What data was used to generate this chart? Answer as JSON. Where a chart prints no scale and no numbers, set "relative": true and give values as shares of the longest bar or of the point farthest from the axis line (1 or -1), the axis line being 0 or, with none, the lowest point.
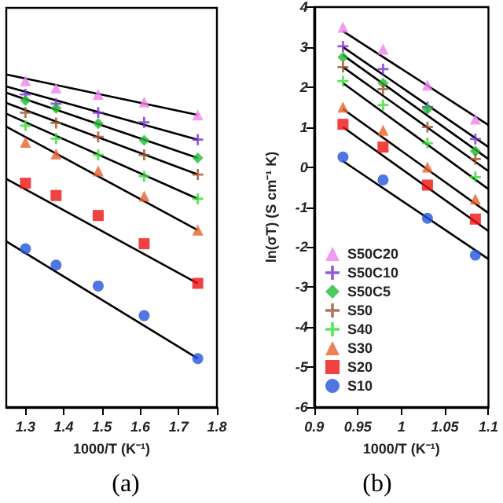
{
  "chart_data": [
    {
      "type": "scatter",
      "relative": true,
      "xlabel": "1000/T (K⁻¹)",
      "xlim": [
        1.25,
        1.8
      ],
      "xticks": [
        1.3,
        1.4,
        1.5,
        1.6,
        1.7,
        1.8
      ],
      "legend": false,
      "grid": false,
      "annotations": [
        "(a)"
      ],
      "x": [
        1.3,
        1.38,
        1.49,
        1.61,
        1.75
      ],
      "series": [
        {
          "color": "#ee82ee",
          "marker": "triangle",
          "values": [
            0.981,
            0.959,
            0.94,
            0.917,
            0.878
          ]
        },
        {
          "color": "#7b2fd6",
          "marker": "cross",
          "values": [
            0.94,
            0.912,
            0.885,
            0.856,
            0.804
          ]
        },
        {
          "color": "#22bb33",
          "marker": "diamond",
          "values": [
            0.922,
            0.898,
            0.852,
            0.802,
            0.749
          ]
        },
        {
          "color": "#a0522d",
          "marker": "cross",
          "values": [
            0.885,
            0.854,
            0.812,
            0.758,
            0.699
          ]
        },
        {
          "color": "#33dd33",
          "marker": "cross",
          "values": [
            0.846,
            0.807,
            0.758,
            0.694,
            0.626
          ]
        },
        {
          "color": "#e8622a",
          "marker": "triangle",
          "values": [
            0.796,
            0.761,
            0.71,
            0.634,
            0.532
          ]
        },
        {
          "color": "#ee1111",
          "marker": "square",
          "values": [
            0.673,
            0.636,
            0.576,
            0.491,
            0.372
          ]
        },
        {
          "color": "#2255dd",
          "marker": "circle",
          "values": [
            0.476,
            0.427,
            0.364,
            0.275,
            0.146
          ]
        },
        {
          "type": "line",
          "color": "#000000",
          "marker": "none",
          "x": [
            1.25,
            1.75
          ],
          "values": [
            1.0,
            0.878
          ]
        },
        {
          "type": "line",
          "color": "#000000",
          "marker": "none",
          "x": [
            1.25,
            1.75
          ],
          "values": [
            0.964,
            0.804
          ]
        },
        {
          "type": "line",
          "color": "#000000",
          "marker": "none",
          "x": [
            1.25,
            1.75
          ],
          "values": [
            0.945,
            0.749
          ]
        },
        {
          "type": "line",
          "color": "#000000",
          "marker": "none",
          "x": [
            1.25,
            1.75
          ],
          "values": [
            0.914,
            0.699
          ]
        },
        {
          "type": "line",
          "color": "#000000",
          "marker": "none",
          "x": [
            1.25,
            1.75
          ],
          "values": [
            0.882,
            0.626
          ]
        },
        {
          "type": "line",
          "color": "#000000",
          "marker": "none",
          "x": [
            1.25,
            1.75
          ],
          "values": [
            0.843,
            0.532
          ]
        },
        {
          "type": "line",
          "color": "#000000",
          "marker": "none",
          "x": [
            1.25,
            1.75
          ],
          "values": [
            0.686,
            0.372
          ]
        },
        {
          "type": "line",
          "color": "#000000",
          "marker": "none",
          "x": [
            1.25,
            1.75
          ],
          "values": [
            0.498,
            0.146
          ]
        }
      ]
    },
    {
      "type": "scatter",
      "xlabel": "1000/T (K⁻¹)",
      "ylabel": "ln(σT) (S cm⁻¹ K)",
      "xlim": [
        0.9,
        1.1
      ],
      "xticks": [
        0.9,
        0.95,
        1,
        1.05,
        1.1
      ],
      "ylim": [
        -6,
        4
      ],
      "yticks": [
        -6,
        -5,
        -4,
        -3,
        -2,
        -1,
        0,
        1,
        2,
        3,
        4
      ],
      "legend": "bottom left",
      "grid": false,
      "annotations": [
        "(b)"
      ],
      "x": [
        0.933,
        0.979,
        1.03,
        1.085
      ],
      "series": [
        {
          "name": "S50C20",
          "color": "#ee82ee",
          "marker": "triangle",
          "values": [
            3.5,
            2.95,
            2.05,
            1.2
          ]
        },
        {
          "name": "S50C10",
          "color": "#7b2fd6",
          "marker": "cross",
          "values": [
            3.02,
            2.45,
            1.5,
            0.7
          ]
        },
        {
          "name": "S50C5",
          "color": "#22bb33",
          "marker": "diamond",
          "values": [
            2.75,
            2.1,
            1.45,
            0.4
          ]
        },
        {
          "name": "S50",
          "color": "#a0522d",
          "marker": "cross",
          "values": [
            2.5,
            1.95,
            1.0,
            0.2
          ]
        },
        {
          "name": "S40",
          "color": "#33dd33",
          "marker": "cross",
          "values": [
            2.15,
            1.55,
            0.6,
            -0.25
          ]
        },
        {
          "name": "S30",
          "color": "#e8622a",
          "marker": "triangle",
          "values": [
            1.5,
            0.92,
            0.0,
            -0.8
          ]
        },
        {
          "name": "S20",
          "color": "#ee1111",
          "marker": "square",
          "values": [
            1.07,
            0.5,
            -0.45,
            -1.3
          ]
        },
        {
          "name": "S10",
          "color": "#2255dd",
          "marker": "circle",
          "values": [
            0.25,
            -0.32,
            -1.28,
            -2.2
          ]
        },
        {
          "type": "line",
          "color": "#000000",
          "marker": "none",
          "x": [
            0.933,
            1.1
          ],
          "values": [
            3.4,
            1.05
          ]
        },
        {
          "type": "line",
          "color": "#000000",
          "marker": "none",
          "x": [
            0.933,
            1.1
          ],
          "values": [
            3.0,
            0.5
          ]
        },
        {
          "type": "line",
          "color": "#000000",
          "marker": "none",
          "x": [
            0.933,
            1.1
          ],
          "values": [
            2.8,
            0.2
          ]
        },
        {
          "type": "line",
          "color": "#000000",
          "marker": "none",
          "x": [
            0.933,
            1.1
          ],
          "values": [
            2.5,
            -0.1
          ]
        },
        {
          "type": "line",
          "color": "#000000",
          "marker": "none",
          "x": [
            0.933,
            1.1
          ],
          "values": [
            2.1,
            -0.55
          ]
        },
        {
          "type": "line",
          "color": "#000000",
          "marker": "none",
          "x": [
            0.933,
            1.1
          ],
          "values": [
            1.45,
            -1.15
          ]
        },
        {
          "type": "line",
          "color": "#000000",
          "marker": "none",
          "x": [
            0.933,
            1.1
          ],
          "values": [
            1.0,
            -1.6
          ]
        },
        {
          "type": "line",
          "color": "#000000",
          "marker": "none",
          "x": [
            0.933,
            1.1
          ],
          "values": [
            0.15,
            -2.3
          ]
        }
      ]
    }
  ]
}
